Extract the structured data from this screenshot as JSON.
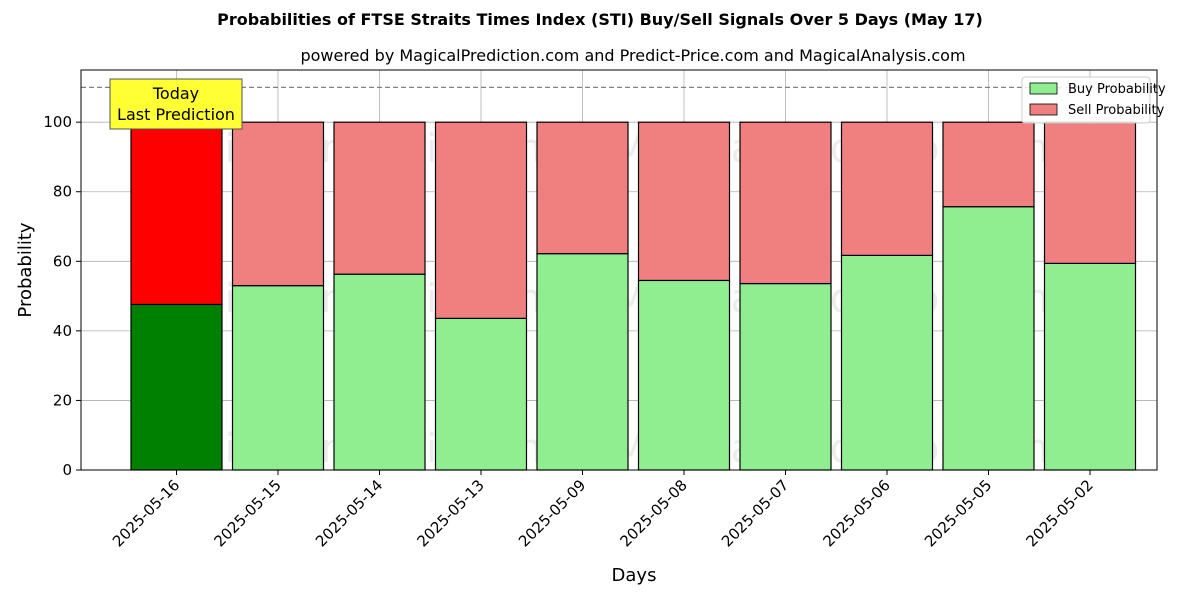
{
  "chart_data": {
    "type": "bar",
    "stacked": true,
    "title": "Probabilities of FTSE Straits Times Index (STI) Buy/Sell Signals Over 5 Days (May 17)",
    "subtitle": "powered by MagicalPrediction.com and Predict-Price.com and MagicalAnalysis.com",
    "xlabel": "Days",
    "ylabel": "Probability",
    "ylim": [
      0,
      115
    ],
    "yticks": [
      0,
      20,
      40,
      60,
      80,
      100
    ],
    "grid": true,
    "legend_position": "top-right",
    "categories": [
      "2025-05-16",
      "2025-05-15",
      "2025-05-14",
      "2025-05-13",
      "2025-05-09",
      "2025-05-08",
      "2025-05-07",
      "2025-05-06",
      "2025-05-05",
      "2025-05-02"
    ],
    "series": [
      {
        "name": "Buy Probability",
        "color": "#90ee90",
        "highlight_color": "#008000",
        "values": [
          47.6,
          53.0,
          56.3,
          43.6,
          62.2,
          54.5,
          53.6,
          61.7,
          75.7,
          59.4
        ]
      },
      {
        "name": "Sell Probability",
        "color": "#f08080",
        "highlight_color": "#ff0000",
        "values": [
          52.4,
          47.0,
          43.7,
          56.4,
          37.8,
          45.5,
          46.4,
          38.3,
          24.3,
          40.6
        ]
      }
    ],
    "reference_line": 110,
    "annotation": {
      "line1": "Today",
      "line2": "Last Prediction",
      "color": "#ffff33"
    },
    "watermarks": [
      "MagicalAnalysis.com",
      "MagicalPrediction.com"
    ]
  }
}
